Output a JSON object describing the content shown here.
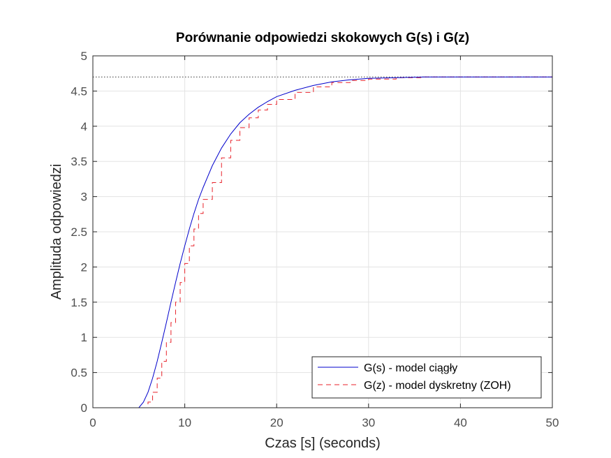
{
  "chart_data": {
    "type": "line",
    "title": "Porównanie odpowiedzi skokowych G(s) i G(z)",
    "xlabel": "Czas [s] (seconds)",
    "ylabel": "Amplituda odpowiedzi",
    "xlim": [
      0,
      50
    ],
    "ylim": [
      0,
      5
    ],
    "xticks": [
      "0",
      "10",
      "20",
      "30",
      "40",
      "50"
    ],
    "yticks": [
      "0",
      "0.5",
      "1",
      "1.5",
      "2",
      "2.5",
      "3",
      "3.5",
      "4",
      "4.5",
      "5"
    ],
    "grid": true,
    "legend_position": "bottom-right",
    "steady_state_value": 4.7,
    "series": [
      {
        "name": "G(s) - model ciągły",
        "style": "solid",
        "color": "#0000cc",
        "x": [
          0,
          5,
          5.5,
          6,
          6.5,
          7,
          7.5,
          8,
          8.5,
          9,
          9.5,
          10,
          10.5,
          11,
          11.5,
          12,
          13,
          14,
          15,
          16,
          17,
          18,
          19,
          20,
          22,
          24,
          26,
          28,
          30,
          33,
          36,
          40,
          45,
          50
        ],
        "y": [
          0,
          0,
          0.08,
          0.22,
          0.42,
          0.66,
          0.93,
          1.21,
          1.5,
          1.78,
          2.05,
          2.3,
          2.54,
          2.76,
          2.96,
          3.13,
          3.44,
          3.69,
          3.89,
          4.05,
          4.17,
          4.27,
          4.35,
          4.42,
          4.51,
          4.58,
          4.63,
          4.66,
          4.68,
          4.69,
          4.7,
          4.7,
          4.7,
          4.7
        ]
      },
      {
        "name": "G(z) - model dyskretny (ZOH)",
        "style": "dashed-staircase",
        "color": "#e8222a",
        "x": [
          0,
          5,
          5.5,
          6,
          6.5,
          7,
          7.5,
          8,
          8.5,
          9,
          9.5,
          10,
          10.5,
          11,
          11.5,
          12,
          13,
          14,
          15,
          16,
          17,
          18,
          19,
          20,
          22,
          24,
          26,
          28,
          30,
          33,
          36,
          40,
          45,
          50
        ],
        "y": [
          0,
          0,
          0,
          0.08,
          0.22,
          0.42,
          0.66,
          0.93,
          1.21,
          1.5,
          1.78,
          2.05,
          2.3,
          2.54,
          2.76,
          2.96,
          3.2,
          3.55,
          3.8,
          3.98,
          4.12,
          4.23,
          4.31,
          4.38,
          4.48,
          4.56,
          4.62,
          4.65,
          4.67,
          4.69,
          4.7,
          4.7,
          4.7,
          4.7
        ]
      }
    ]
  }
}
